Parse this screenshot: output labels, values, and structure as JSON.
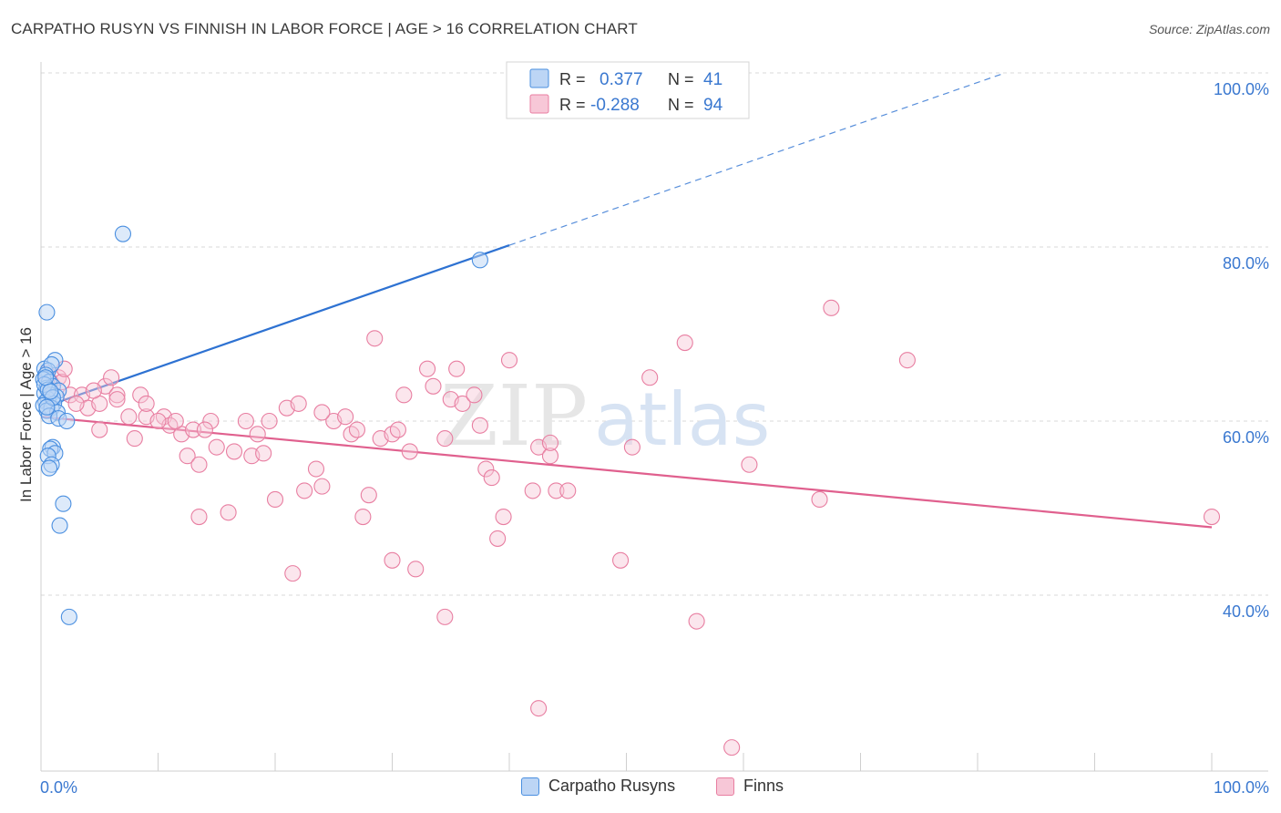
{
  "title": "CARPATHO RUSYN VS FINNISH IN LABOR FORCE | AGE > 16 CORRELATION CHART",
  "source": "Source: ZipAtlas.com",
  "watermark": {
    "zip": "ZIP",
    "atlas": "atlas"
  },
  "colors": {
    "blue": "#4a8fe0",
    "blue_fill": "#bcd5f5",
    "blue_line": "#2e72d2",
    "pink": "#e87ea1",
    "pink_fill": "#f7c7d7",
    "pink_line": "#e0608e",
    "axis_text": "#3a78d0",
    "grid": "#d8d8d8"
  },
  "legend": {
    "rows": [
      {
        "r_label": "R =",
        "r_value": "0.377",
        "n_label": "N =",
        "n_value": "41"
      },
      {
        "r_label": "R =",
        "r_value": "-0.288",
        "n_label": "N =",
        "n_value": "94"
      }
    ]
  },
  "series_labels": {
    "blue": "Carpatho Rusyns",
    "pink": "Finns"
  },
  "chart_data": {
    "type": "scatter",
    "xlabel": "",
    "ylabel": "In Labor Force | Age > 16",
    "xlim": [
      0,
      100
    ],
    "ylim": [
      20,
      100
    ],
    "x_tick_labels": [
      "0.0%",
      "100.0%"
    ],
    "y_tick_values": [
      40,
      60,
      80,
      100
    ],
    "y_tick_labels": [
      "40.0%",
      "60.0%",
      "80.0%",
      "100.0%"
    ],
    "series": [
      {
        "name": "Carpatho Rusyns",
        "r": 0.377,
        "n": 41,
        "trend": {
          "x0": 0,
          "y0": 61.5,
          "x1": 40,
          "y1": 80.2,
          "dash_to_x": 82
        },
        "points": [
          [
            0.5,
            72.5
          ],
          [
            1.2,
            67.0
          ],
          [
            0.3,
            66.0
          ],
          [
            0.6,
            65.8
          ],
          [
            0.9,
            66.5
          ],
          [
            0.4,
            65.3
          ],
          [
            0.2,
            64.8
          ],
          [
            0.7,
            64.5
          ],
          [
            1.0,
            64.0
          ],
          [
            0.5,
            63.8
          ],
          [
            1.5,
            63.5
          ],
          [
            0.3,
            63.2
          ],
          [
            0.8,
            63.0
          ],
          [
            1.3,
            62.8
          ],
          [
            0.6,
            62.5
          ],
          [
            0.4,
            62.2
          ],
          [
            1.1,
            62.0
          ],
          [
            0.2,
            61.8
          ],
          [
            0.9,
            61.5
          ],
          [
            0.5,
            61.2
          ],
          [
            1.4,
            61.0
          ],
          [
            0.7,
            60.6
          ],
          [
            1.5,
            60.3
          ],
          [
            2.2,
            60.0
          ],
          [
            0.3,
            64.2
          ],
          [
            0.6,
            63.6
          ],
          [
            1.0,
            57.0
          ],
          [
            0.8,
            56.8
          ],
          [
            1.2,
            56.3
          ],
          [
            0.6,
            56.0
          ],
          [
            0.9,
            55.0
          ],
          [
            0.7,
            54.6
          ],
          [
            1.9,
            50.5
          ],
          [
            1.6,
            48.0
          ],
          [
            2.4,
            37.5
          ],
          [
            7.0,
            81.5
          ],
          [
            37.5,
            78.5
          ],
          [
            0.4,
            65.0
          ],
          [
            1.0,
            62.7
          ],
          [
            0.5,
            61.6
          ],
          [
            0.8,
            63.4
          ]
        ]
      },
      {
        "name": "Finns",
        "r": -0.288,
        "n": 94,
        "trend": {
          "x0": 0,
          "y0": 60.5,
          "x1": 100,
          "y1": 47.8
        },
        "points": [
          [
            0.5,
            65.5
          ],
          [
            1.5,
            65.0
          ],
          [
            0.8,
            64.5
          ],
          [
            2.5,
            63.0
          ],
          [
            3.5,
            63.0
          ],
          [
            5.5,
            64.0
          ],
          [
            6.5,
            63.0
          ],
          [
            8.5,
            63.0
          ],
          [
            4.0,
            61.5
          ],
          [
            5.0,
            62.0
          ],
          [
            7.5,
            60.5
          ],
          [
            9.0,
            60.5
          ],
          [
            10.5,
            60.5
          ],
          [
            11.0,
            59.5
          ],
          [
            12.0,
            58.5
          ],
          [
            13.0,
            59.0
          ],
          [
            14.5,
            60.0
          ],
          [
            16.5,
            56.5
          ],
          [
            5.0,
            59.0
          ],
          [
            8.0,
            58.0
          ],
          [
            12.5,
            56.0
          ],
          [
            10.0,
            60.0
          ],
          [
            13.5,
            55.0
          ],
          [
            15.0,
            57.0
          ],
          [
            17.5,
            60.0
          ],
          [
            18.5,
            58.5
          ],
          [
            18.0,
            56.0
          ],
          [
            19.0,
            56.3
          ],
          [
            20.0,
            51.0
          ],
          [
            21.0,
            61.5
          ],
          [
            22.0,
            62.0
          ],
          [
            22.5,
            52.0
          ],
          [
            23.5,
            54.5
          ],
          [
            24.0,
            52.5
          ],
          [
            25.0,
            60.0
          ],
          [
            26.0,
            60.5
          ],
          [
            26.5,
            58.5
          ],
          [
            27.0,
            59.0
          ],
          [
            27.5,
            49.0
          ],
          [
            28.0,
            51.5
          ],
          [
            28.5,
            69.5
          ],
          [
            29.0,
            58.0
          ],
          [
            30.0,
            58.5
          ],
          [
            30.5,
            59.0
          ],
          [
            31.0,
            63.0
          ],
          [
            31.5,
            56.5
          ],
          [
            32.0,
            43.0
          ],
          [
            33.0,
            66.0
          ],
          [
            33.5,
            64.0
          ],
          [
            34.5,
            58.0
          ],
          [
            35.5,
            66.0
          ],
          [
            35.0,
            62.5
          ],
          [
            36.0,
            62.0
          ],
          [
            37.0,
            63.0
          ],
          [
            37.5,
            59.5
          ],
          [
            38.0,
            54.5
          ],
          [
            38.5,
            53.5
          ],
          [
            39.0,
            46.5
          ],
          [
            40.0,
            67.0
          ],
          [
            39.5,
            49.0
          ],
          [
            42.5,
            57.0
          ],
          [
            42.0,
            52.0
          ],
          [
            43.5,
            56.0
          ],
          [
            44.0,
            52.0
          ],
          [
            45.0,
            52.0
          ],
          [
            50.5,
            57.0
          ],
          [
            52.0,
            65.0
          ],
          [
            55.0,
            69.0
          ],
          [
            60.5,
            55.0
          ],
          [
            66.5,
            51.0
          ],
          [
            67.5,
            73.0
          ],
          [
            74.0,
            67.0
          ],
          [
            100.0,
            49.0
          ],
          [
            43.5,
            57.5
          ],
          [
            42.5,
            27.0
          ],
          [
            59.0,
            22.5
          ],
          [
            34.5,
            37.5
          ],
          [
            56.0,
            37.0
          ],
          [
            49.5,
            44.0
          ],
          [
            30.0,
            44.0
          ],
          [
            21.5,
            42.5
          ],
          [
            13.5,
            49.0
          ],
          [
            16.0,
            49.5
          ],
          [
            19.5,
            60.0
          ],
          [
            24.0,
            61.0
          ],
          [
            6.0,
            65.0
          ],
          [
            1.8,
            64.5
          ],
          [
            2.0,
            66.0
          ],
          [
            3.0,
            62.0
          ],
          [
            4.5,
            63.5
          ],
          [
            6.5,
            62.5
          ],
          [
            9.0,
            62.0
          ],
          [
            11.5,
            60.0
          ],
          [
            14.0,
            59.0
          ]
        ]
      }
    ]
  }
}
